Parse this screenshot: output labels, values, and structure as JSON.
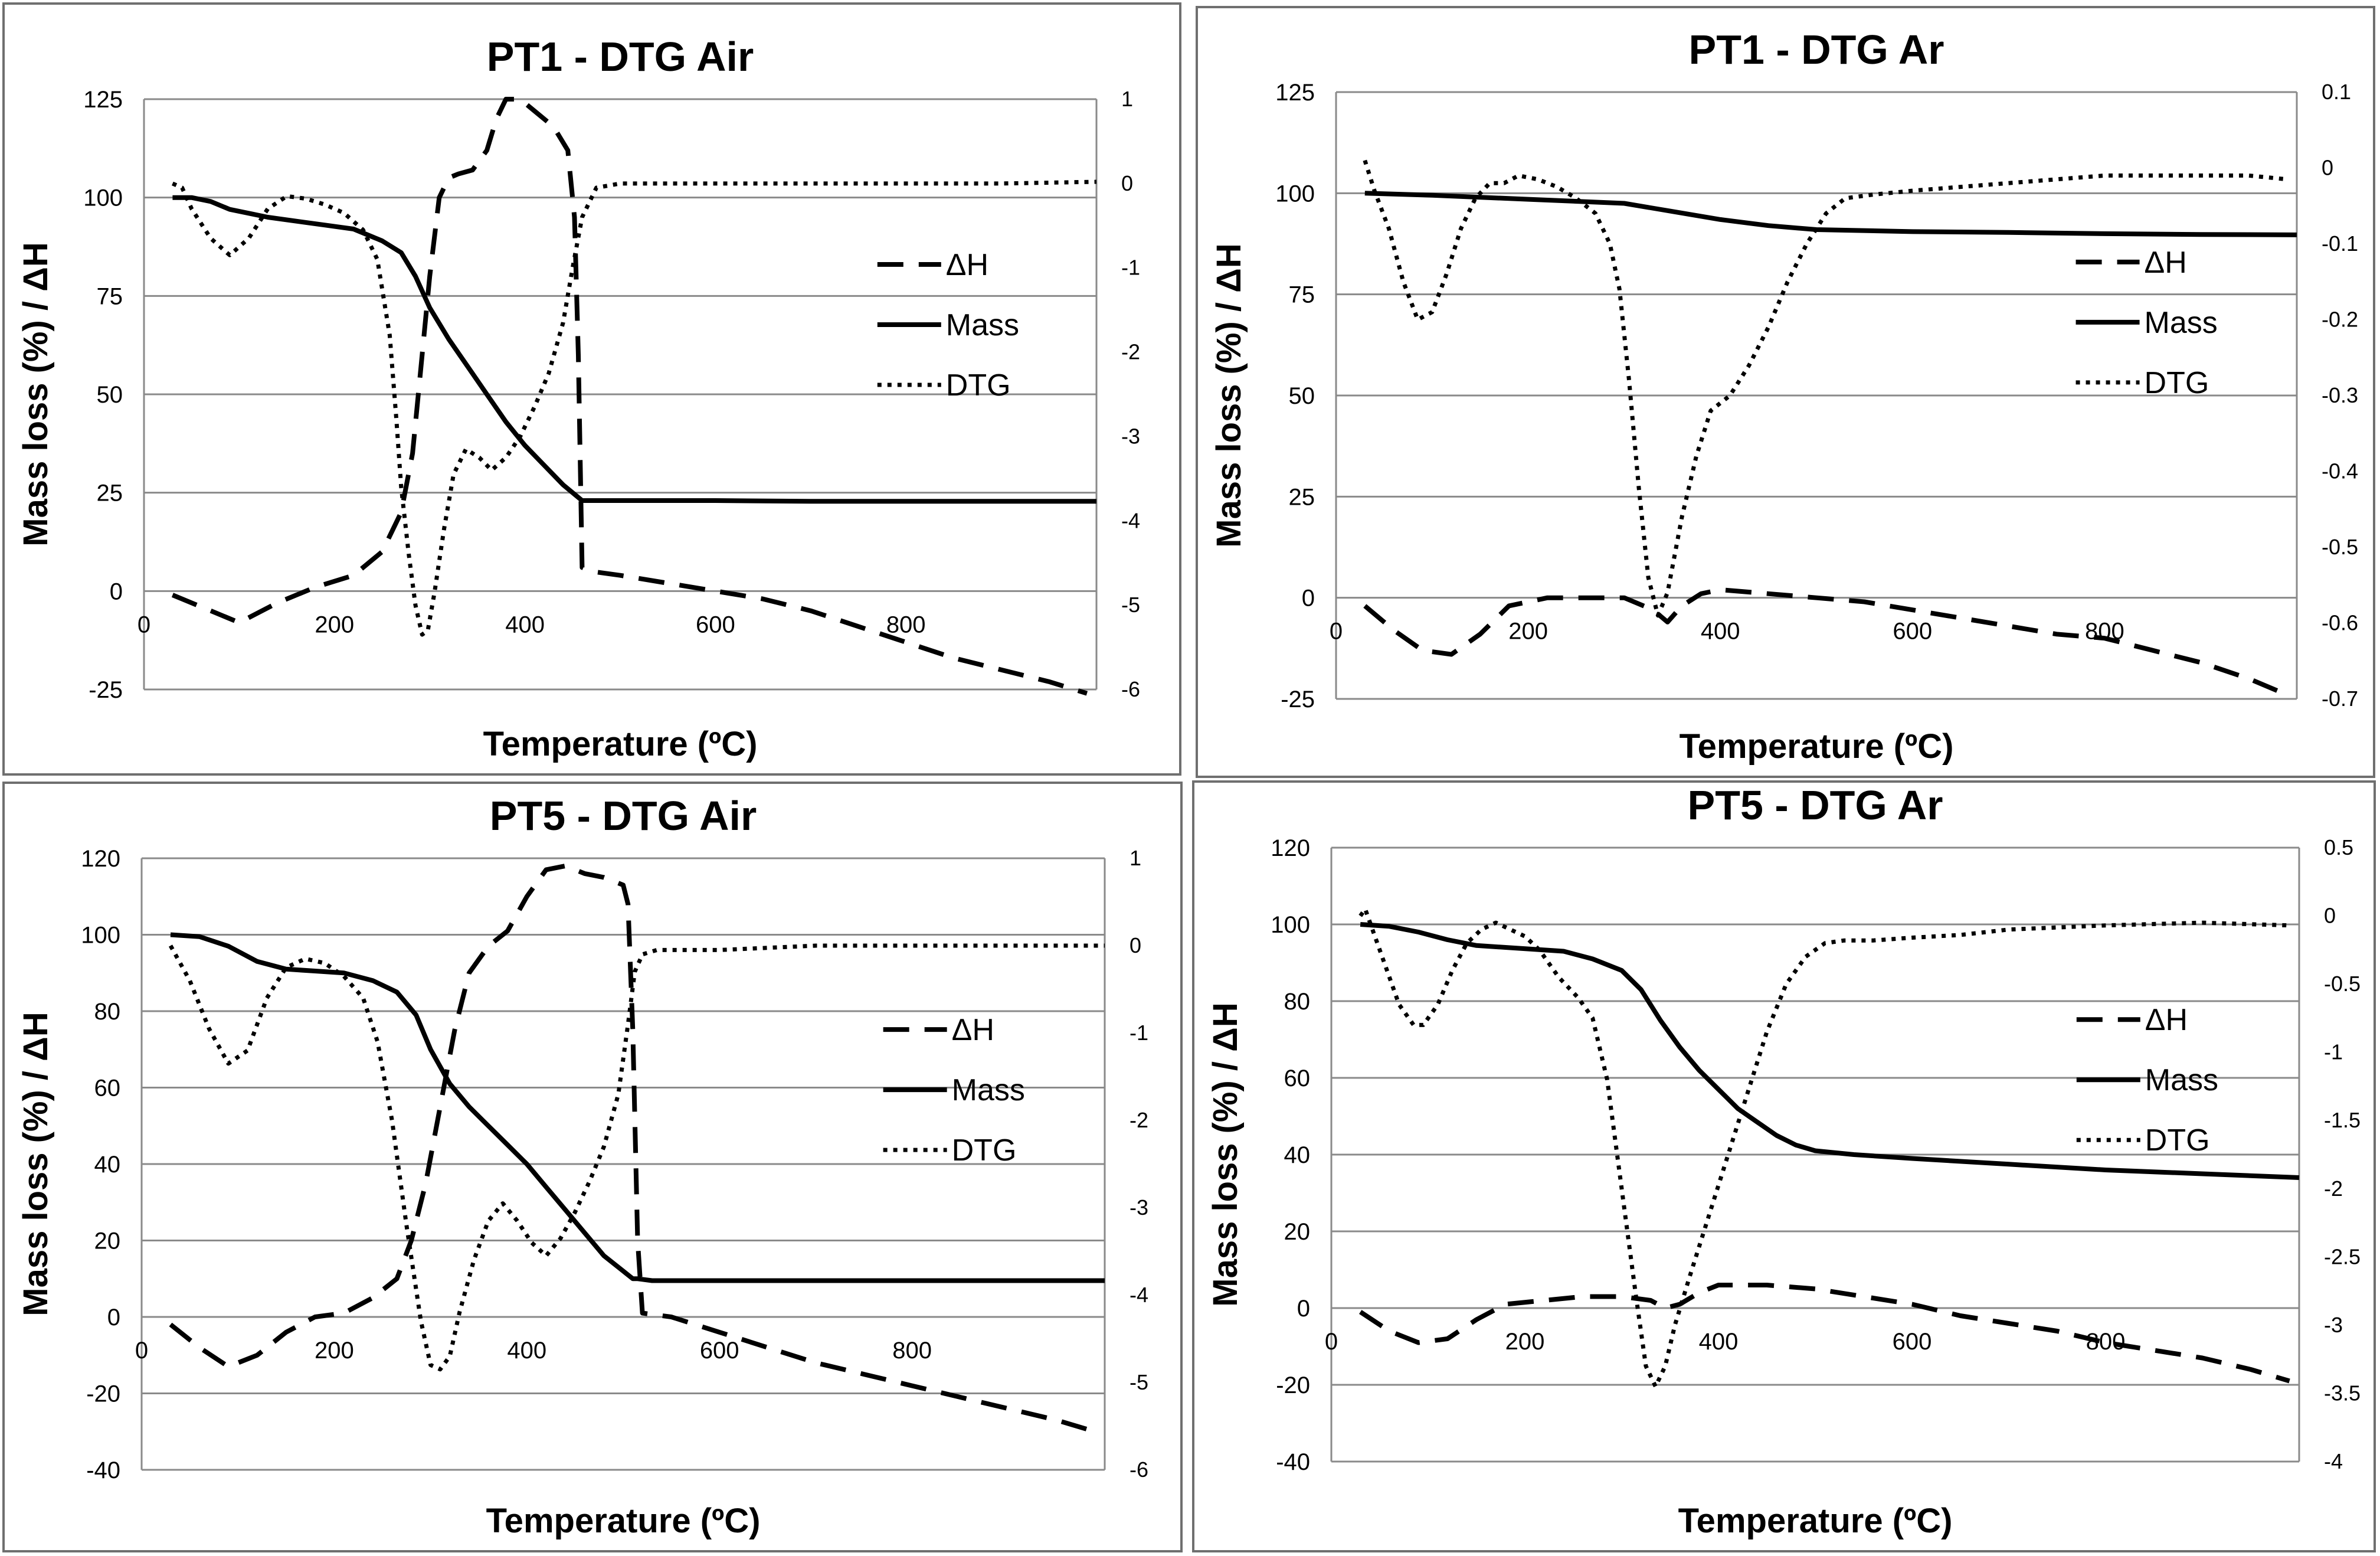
{
  "chart_data": [
    {
      "type": "line",
      "title": "PT1 - DTG Air",
      "xlabel": "Temperature (ºC)",
      "ylabel": "Mass loss (%) / ΔH",
      "xlim": [
        0,
        1000
      ],
      "ylim": [
        -25,
        125
      ],
      "y_ticks": [
        125,
        100,
        75,
        50,
        25,
        0,
        -25
      ],
      "y2lim": [
        -6,
        1
      ],
      "y2_ticks": [
        1,
        0,
        -1,
        -2,
        -3,
        -4,
        -5,
        -6
      ],
      "x_ticks": [
        0,
        200,
        400,
        600,
        800
      ],
      "grid": true,
      "legend_position": "right",
      "legend": [
        "ΔH",
        "Mass",
        "DTG"
      ],
      "series": [
        {
          "name": "ΔH",
          "style": "dashed",
          "axis": "left",
          "x": [
            30,
            60,
            100,
            140,
            180,
            220,
            250,
            270,
            282,
            290,
            300,
            310,
            320,
            330,
            345,
            360,
            370,
            380,
            395,
            410,
            430,
            445,
            452,
            456,
            460,
            470,
            500,
            550,
            600,
            650,
            700,
            750,
            800,
            850,
            900,
            950,
            990
          ],
          "y": [
            -1,
            -4,
            -8,
            -3,
            1,
            4,
            10,
            20,
            35,
            55,
            80,
            100,
            105,
            106,
            107,
            112,
            120,
            125,
            125,
            122,
            118,
            112,
            95,
            60,
            6,
            5,
            4,
            2,
            0,
            -2,
            -5,
            -9,
            -13,
            -17,
            -20,
            -23,
            -26
          ]
        },
        {
          "name": "Mass",
          "style": "solid",
          "axis": "left",
          "x": [
            30,
            50,
            70,
            90,
            110,
            130,
            160,
            190,
            220,
            250,
            270,
            285,
            300,
            320,
            340,
            360,
            380,
            400,
            420,
            440,
            460,
            500,
            600,
            700,
            800,
            900,
            1000
          ],
          "y": [
            100,
            100,
            99,
            97,
            96,
            95,
            94,
            93,
            92,
            89,
            86,
            80,
            72,
            64,
            57,
            50,
            43,
            37,
            32,
            27,
            23,
            23,
            23,
            22.8,
            22.8,
            22.8,
            22.8
          ]
        },
        {
          "name": "DTG",
          "style": "dotted",
          "axis": "right",
          "x": [
            30,
            40,
            50,
            70,
            90,
            110,
            130,
            150,
            170,
            190,
            210,
            230,
            245,
            258,
            265,
            270,
            278,
            285,
            292,
            298,
            305,
            315,
            325,
            338,
            352,
            365,
            380,
            395,
            410,
            425,
            440,
            450,
            460,
            475,
            500,
            600,
            700,
            800,
            900,
            1000
          ],
          "y": [
            0,
            -0.05,
            -0.3,
            -0.65,
            -0.85,
            -0.65,
            -0.3,
            -0.15,
            -0.18,
            -0.25,
            -0.35,
            -0.55,
            -0.9,
            -1.8,
            -2.8,
            -3.6,
            -4.4,
            -5.0,
            -5.35,
            -5.3,
            -4.85,
            -4.1,
            -3.45,
            -3.15,
            -3.25,
            -3.4,
            -3.25,
            -3.0,
            -2.65,
            -2.25,
            -1.65,
            -1.0,
            -0.4,
            -0.05,
            0,
            0,
            0,
            0,
            0,
            0.02
          ]
        }
      ]
    },
    {
      "type": "line",
      "title": "PT1 - DTG Ar",
      "xlabel": "Temperature (ºC)",
      "ylabel": "Mass loss (%) / ΔH",
      "xlim": [
        0,
        1000
      ],
      "ylim": [
        -25,
        125
      ],
      "y_ticks": [
        125,
        100,
        75,
        50,
        25,
        0,
        -25
      ],
      "y2lim": [
        -0.7,
        0.1
      ],
      "y2_ticks": [
        0.1,
        0,
        -0.1,
        -0.2,
        -0.3,
        -0.4,
        -0.5,
        -0.6,
        -0.7
      ],
      "x_ticks": [
        0,
        200,
        400,
        600,
        800
      ],
      "grid": true,
      "legend_position": "right",
      "legend": [
        "ΔH",
        "Mass",
        "DTG"
      ],
      "series": [
        {
          "name": "ΔH",
          "style": "dashed",
          "axis": "left",
          "x": [
            30,
            60,
            90,
            120,
            150,
            180,
            220,
            260,
            300,
            330,
            345,
            360,
            380,
            400,
            450,
            500,
            550,
            600,
            650,
            700,
            750,
            800,
            850,
            900,
            950,
            990
          ],
          "y": [
            -2,
            -8,
            -13,
            -14,
            -9,
            -2,
            0,
            0,
            0,
            -3,
            -6,
            -2,
            1,
            2,
            1,
            0,
            -1,
            -3,
            -5,
            -7,
            -9,
            -10,
            -13,
            -16,
            -20,
            -24
          ]
        },
        {
          "name": "Mass",
          "style": "solid",
          "axis": "left",
          "x": [
            30,
            100,
            200,
            300,
            350,
            400,
            450,
            500,
            600,
            700,
            800,
            900,
            1000
          ],
          "y": [
            100,
            99.5,
            98.5,
            97.5,
            95.5,
            93.5,
            92,
            91,
            90.5,
            90.3,
            90,
            89.8,
            89.7
          ]
        },
        {
          "name": "DTG",
          "style": "dotted",
          "axis": "right",
          "x": [
            30,
            40,
            55,
            70,
            85,
            100,
            115,
            130,
            145,
            160,
            175,
            190,
            210,
            230,
            250,
            270,
            285,
            295,
            305,
            315,
            325,
            335,
            345,
            360,
            375,
            390,
            410,
            430,
            450,
            470,
            490,
            510,
            530,
            560,
            600,
            650,
            700,
            800,
            850,
            900,
            950,
            990
          ],
          "y": [
            0.01,
            -0.03,
            -0.08,
            -0.15,
            -0.2,
            -0.19,
            -0.14,
            -0.08,
            -0.04,
            -0.02,
            -0.02,
            -0.01,
            -0.015,
            -0.025,
            -0.04,
            -0.06,
            -0.1,
            -0.16,
            -0.28,
            -0.42,
            -0.54,
            -0.59,
            -0.56,
            -0.46,
            -0.38,
            -0.32,
            -0.3,
            -0.26,
            -0.21,
            -0.15,
            -0.1,
            -0.06,
            -0.04,
            -0.035,
            -0.03,
            -0.025,
            -0.02,
            -0.01,
            -0.01,
            -0.01,
            -0.01,
            -0.015
          ]
        }
      ]
    },
    {
      "type": "line",
      "title": "PT5 - DTG Air",
      "xlabel": "Temperature (ºC)",
      "ylabel": "Mass loss (%) / ΔH",
      "xlim": [
        0,
        1000
      ],
      "ylim": [
        -40,
        120
      ],
      "y_ticks": [
        120,
        100,
        80,
        60,
        40,
        20,
        0,
        -20,
        -40
      ],
      "y2lim": [
        -6,
        1
      ],
      "y2_ticks": [
        1,
        0,
        -1,
        -2,
        -3,
        -4,
        -5,
        -6
      ],
      "x_ticks": [
        0,
        200,
        400,
        600,
        800
      ],
      "grid": true,
      "legend_position": "right",
      "legend": [
        "ΔH",
        "Mass",
        "DTG"
      ],
      "series": [
        {
          "name": "ΔH",
          "style": "dashed",
          "axis": "left",
          "x": [
            30,
            60,
            90,
            120,
            150,
            180,
            210,
            240,
            265,
            280,
            295,
            310,
            325,
            340,
            360,
            380,
            400,
            420,
            440,
            460,
            480,
            500,
            505,
            510,
            515,
            520,
            550,
            600,
            650,
            700,
            750,
            800,
            850,
            900,
            950,
            990
          ],
          "y": [
            -2,
            -8,
            -13,
            -10,
            -4,
            0,
            1,
            5,
            10,
            20,
            35,
            55,
            75,
            90,
            97,
            101,
            110,
            117,
            118,
            116,
            115,
            113,
            108,
            75,
            20,
            1,
            0,
            -4,
            -8,
            -12,
            -15,
            -18,
            -21,
            -24,
            -27,
            -30
          ]
        },
        {
          "name": "Mass",
          "style": "solid",
          "axis": "left",
          "x": [
            30,
            60,
            90,
            120,
            150,
            180,
            210,
            240,
            265,
            285,
            300,
            320,
            340,
            360,
            380,
            400,
            420,
            440,
            460,
            480,
            500,
            510,
            515,
            530,
            600,
            700,
            800,
            900,
            1000
          ],
          "y": [
            100,
            99.5,
            97,
            93,
            91,
            90.5,
            90,
            88,
            85,
            79,
            70,
            61,
            55,
            50,
            45,
            40,
            34,
            28,
            22,
            16,
            12,
            10,
            10,
            9.5,
            9.5,
            9.5,
            9.5,
            9.5,
            9.5
          ]
        },
        {
          "name": "DTG",
          "style": "dotted",
          "axis": "right",
          "x": [
            30,
            50,
            70,
            90,
            110,
            130,
            150,
            170,
            190,
            210,
            230,
            245,
            260,
            275,
            290,
            300,
            310,
            320,
            330,
            345,
            360,
            375,
            390,
            405,
            420,
            435,
            450,
            465,
            480,
            495,
            505,
            512,
            520,
            535,
            600,
            700,
            800,
            900,
            1000
          ],
          "y": [
            0,
            -0.4,
            -0.95,
            -1.35,
            -1.2,
            -0.6,
            -0.25,
            -0.15,
            -0.2,
            -0.35,
            -0.6,
            -1.1,
            -2.0,
            -3.2,
            -4.3,
            -4.8,
            -4.85,
            -4.7,
            -4.2,
            -3.6,
            -3.15,
            -2.95,
            -3.15,
            -3.4,
            -3.55,
            -3.35,
            -3.05,
            -2.7,
            -2.3,
            -1.7,
            -0.9,
            -0.3,
            -0.1,
            -0.05,
            -0.05,
            0,
            0,
            0,
            0
          ]
        }
      ]
    },
    {
      "type": "line",
      "title": "PT5 - DTG Ar",
      "xlabel": "Temperature (ºC)",
      "ylabel": "Mass loss (%) / ΔH",
      "xlim": [
        0,
        1000
      ],
      "ylim": [
        -40,
        120
      ],
      "y_ticks": [
        120,
        100,
        80,
        60,
        40,
        20,
        0,
        -20,
        -40
      ],
      "y2lim": [
        -4,
        0.5
      ],
      "y2_ticks": [
        0.5,
        0,
        -0.5,
        -1,
        -1.5,
        -2,
        -2.5,
        -3,
        -3.5,
        -4
      ],
      "x_ticks": [
        0,
        200,
        400,
        600,
        800
      ],
      "grid": true,
      "legend_position": "right",
      "legend": [
        "ΔH",
        "Mass",
        "DTG"
      ],
      "series": [
        {
          "name": "ΔH",
          "style": "dashed",
          "axis": "left",
          "x": [
            30,
            60,
            90,
            120,
            150,
            180,
            220,
            260,
            300,
            330,
            345,
            360,
            380,
            400,
            450,
            500,
            550,
            600,
            650,
            700,
            750,
            800,
            850,
            900,
            950,
            990
          ],
          "y": [
            -1,
            -6,
            -9,
            -8,
            -3,
            1,
            2,
            3,
            3,
            2,
            0,
            1,
            4,
            6,
            6,
            5,
            3,
            1,
            -2,
            -4,
            -6,
            -9,
            -11,
            -13,
            -16,
            -19
          ]
        },
        {
          "name": "Mass",
          "style": "solid",
          "axis": "left",
          "x": [
            30,
            60,
            90,
            120,
            150,
            180,
            210,
            240,
            270,
            300,
            320,
            340,
            360,
            380,
            400,
            420,
            440,
            460,
            480,
            500,
            540,
            600,
            700,
            800,
            900,
            1000
          ],
          "y": [
            100,
            99.5,
            98,
            96,
            94.5,
            94,
            93.5,
            93,
            91,
            88,
            83,
            75,
            68,
            62,
            57,
            52,
            48.5,
            45,
            42.5,
            41,
            40,
            39,
            37.5,
            36,
            35,
            34
          ]
        },
        {
          "name": "DTG",
          "style": "dotted",
          "axis": "right",
          "x": [
            30,
            35,
            40,
            55,
            70,
            85,
            95,
            110,
            125,
            140,
            155,
            170,
            185,
            200,
            215,
            235,
            255,
            270,
            285,
            300,
            315,
            325,
            335,
            345,
            355,
            370,
            390,
            410,
            430,
            450,
            470,
            490,
            510,
            530,
            560,
            600,
            650,
            700,
            800,
            900,
            990
          ],
          "y": [
            0,
            0.05,
            -0.05,
            -0.35,
            -0.65,
            -0.8,
            -0.8,
            -0.65,
            -0.4,
            -0.2,
            -0.1,
            -0.05,
            -0.1,
            -0.15,
            -0.25,
            -0.45,
            -0.6,
            -0.75,
            -1.2,
            -2.0,
            -2.8,
            -3.3,
            -3.45,
            -3.3,
            -3.0,
            -2.65,
            -2.2,
            -1.75,
            -1.3,
            -0.85,
            -0.5,
            -0.3,
            -0.2,
            -0.18,
            -0.18,
            -0.16,
            -0.14,
            -0.1,
            -0.07,
            -0.05,
            -0.07
          ]
        }
      ]
    }
  ]
}
